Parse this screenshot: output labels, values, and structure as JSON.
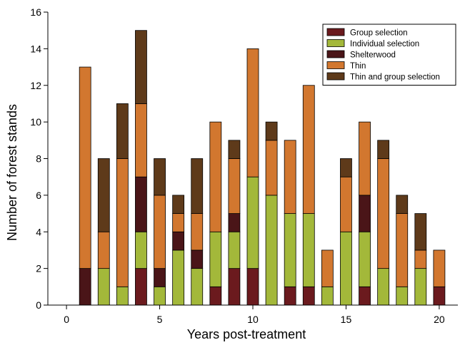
{
  "chart_data": {
    "type": "bar",
    "stacked": true,
    "xlabel": "Years post-treatment",
    "ylabel": "Number of forest stands",
    "xlim": [
      -1,
      21
    ],
    "ylim": [
      0,
      16
    ],
    "xticks": [
      0,
      5,
      10,
      15,
      20
    ],
    "yticks": [
      0,
      2,
      4,
      6,
      8,
      10,
      12,
      14,
      16
    ],
    "grid": false,
    "legend_position": "top-right",
    "x": [
      1,
      2,
      3,
      4,
      5,
      6,
      7,
      8,
      9,
      10,
      11,
      12,
      13,
      14,
      15,
      16,
      17,
      18,
      19,
      20
    ],
    "series": [
      {
        "name": "Group selection",
        "color": "#6b1a1e",
        "values": [
          0,
          0,
          0,
          2,
          0,
          0,
          0,
          1,
          2,
          2,
          0,
          1,
          1,
          0,
          0,
          1,
          0,
          0,
          0,
          1
        ]
      },
      {
        "name": "Individual selection",
        "color": "#a3b83a",
        "values": [
          0,
          2,
          1,
          2,
          1,
          3,
          2,
          3,
          2,
          5,
          6,
          4,
          4,
          1,
          4,
          3,
          2,
          1,
          2,
          0
        ]
      },
      {
        "name": "Shelterwood",
        "color": "#4a1518",
        "values": [
          2,
          0,
          0,
          3,
          1,
          1,
          1,
          0,
          1,
          0,
          0,
          0,
          0,
          0,
          0,
          2,
          0,
          0,
          0,
          0
        ]
      },
      {
        "name": "Thin",
        "color": "#d2772f",
        "values": [
          11,
          2,
          7,
          4,
          4,
          1,
          2,
          6,
          3,
          7,
          3,
          4,
          7,
          2,
          3,
          4,
          6,
          4,
          1,
          2
        ]
      },
      {
        "name": "Thin and group selection",
        "color": "#5e3a1a",
        "values": [
          0,
          4,
          3,
          4,
          2,
          1,
          3,
          0,
          1,
          0,
          1,
          0,
          0,
          0,
          1,
          0,
          1,
          1,
          2,
          0
        ]
      }
    ]
  }
}
